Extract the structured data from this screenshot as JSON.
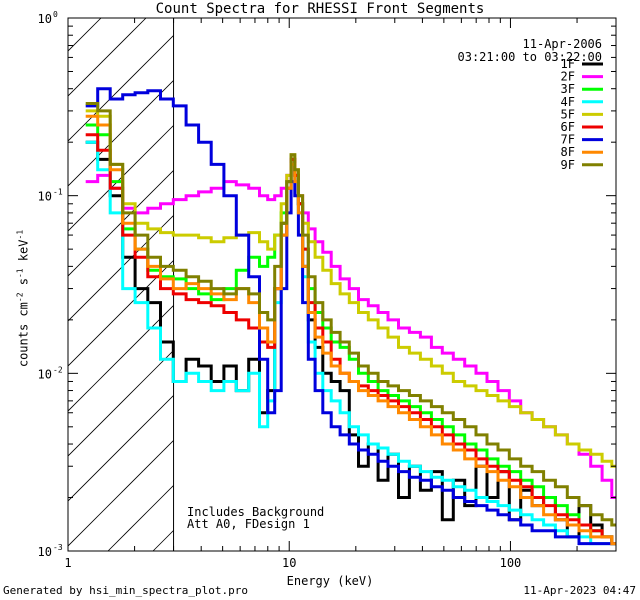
{
  "chart_data": {
    "type": "line",
    "title": "Count Spectra for RHESSI Front Segments",
    "xlabel": "Energy (keV)",
    "ylabel_parts": [
      "counts cm",
      "-2",
      " s",
      "-1",
      " keV",
      "-1"
    ],
    "xscale": "log",
    "yscale": "log",
    "xlim": [
      1,
      300
    ],
    "ylim": [
      0.001,
      1
    ],
    "x_ticks": [
      {
        "v": 1,
        "label": "1"
      },
      {
        "v": 10,
        "label": "10"
      },
      {
        "v": 100,
        "label": "100"
      }
    ],
    "y_ticks": [
      {
        "v": 0.001,
        "base": "10",
        "exp": "-3"
      },
      {
        "v": 0.01,
        "base": "10",
        "exp": "-2"
      },
      {
        "v": 0.1,
        "base": "10",
        "exp": "-1"
      },
      {
        "v": 1,
        "base": "10",
        "exp": "0"
      }
    ],
    "shaded_region": [
      1,
      3
    ],
    "date": "11-Apr-2006",
    "time_range": "03:21:00 to 03:22:00",
    "annotations": [
      "Includes Background",
      "Att A0, FDesign 1"
    ],
    "footer_left": "Generated by hsi_min_spectra_plot.pro",
    "footer_right": "11-Apr-2023 04:47",
    "x": [
      1.28,
      1.45,
      1.66,
      1.88,
      2.15,
      2.45,
      2.8,
      3.2,
      3.65,
      4.15,
      4.75,
      5.4,
      6.15,
      7.0,
      7.7,
      8.3,
      8.9,
      9.5,
      10.0,
      10.4,
      10.8,
      11.2,
      11.8,
      12.6,
      13.6,
      14.8,
      16.2,
      17.8,
      19.6,
      21.6,
      24.0,
      26.5,
      29.5,
      33.0,
      37.0,
      41.5,
      46.5,
      52.0,
      58.5,
      66.0,
      74.0,
      83.0,
      93.0,
      105.0,
      118.0,
      133.0,
      150.0,
      170.0,
      192.0,
      217.0,
      245.0,
      275.0,
      300.0
    ],
    "series": [
      {
        "name": "1F",
        "color": "#000000",
        "values": [
          0.2,
          0.16,
          0.1,
          0.045,
          0.03,
          0.025,
          0.015,
          0.009,
          0.012,
          0.011,
          0.009,
          0.011,
          0.008,
          0.012,
          0.006,
          0.008,
          0.03,
          0.07,
          0.12,
          0.16,
          0.13,
          0.09,
          0.04,
          0.02,
          0.014,
          0.01,
          0.009,
          0.008,
          0.0045,
          0.003,
          0.004,
          0.0025,
          0.0035,
          0.002,
          0.003,
          0.0022,
          0.0028,
          0.0015,
          0.0025,
          0.0018,
          0.003,
          0.002,
          0.0028,
          0.0015,
          0.0022,
          0.0018,
          0.002,
          0.0015,
          0.0012,
          0.0018,
          0.0014,
          0.0012,
          0.0011
        ]
      },
      {
        "name": "2F",
        "color": "#ff00ff",
        "values": [
          0.12,
          0.13,
          0.11,
          0.085,
          0.08,
          0.085,
          0.09,
          0.095,
          0.1,
          0.105,
          0.11,
          0.12,
          0.115,
          0.11,
          0.1,
          0.095,
          0.1,
          0.11,
          0.13,
          0.15,
          0.12,
          0.1,
          0.08,
          0.065,
          0.055,
          0.048,
          0.04,
          0.034,
          0.03,
          0.026,
          0.024,
          0.022,
          0.02,
          0.018,
          0.017,
          0.016,
          0.014,
          0.013,
          0.012,
          0.011,
          0.01,
          0.009,
          0.008,
          0.007,
          0.006,
          0.0055,
          0.005,
          0.0045,
          0.004,
          0.0035,
          0.003,
          0.0025,
          0.002
        ]
      },
      {
        "name": "3F",
        "color": "#00ff00",
        "values": [
          0.25,
          0.22,
          0.12,
          0.065,
          0.05,
          0.038,
          0.035,
          0.034,
          0.03,
          0.028,
          0.026,
          0.03,
          0.038,
          0.045,
          0.04,
          0.045,
          0.06,
          0.08,
          0.12,
          0.16,
          0.13,
          0.09,
          0.05,
          0.03,
          0.022,
          0.018,
          0.015,
          0.014,
          0.012,
          0.01,
          0.009,
          0.008,
          0.0075,
          0.007,
          0.0065,
          0.006,
          0.0055,
          0.005,
          0.0045,
          0.004,
          0.0037,
          0.0033,
          0.003,
          0.0028,
          0.0025,
          0.0023,
          0.002,
          0.0018,
          0.0016,
          0.0014,
          0.0013,
          0.0012,
          0.0011
        ]
      },
      {
        "name": "4F",
        "color": "#00ffff",
        "values": [
          0.2,
          0.14,
          0.08,
          0.03,
          0.025,
          0.018,
          0.012,
          0.009,
          0.01,
          0.009,
          0.008,
          0.009,
          0.008,
          0.01,
          0.005,
          0.007,
          0.025,
          0.06,
          0.11,
          0.15,
          0.12,
          0.08,
          0.035,
          0.015,
          0.01,
          0.008,
          0.007,
          0.006,
          0.005,
          0.0045,
          0.004,
          0.0038,
          0.0035,
          0.0032,
          0.003,
          0.0028,
          0.0026,
          0.0025,
          0.0023,
          0.0022,
          0.002,
          0.0019,
          0.0018,
          0.0017,
          0.0016,
          0.0015,
          0.0014,
          0.0013,
          0.0012,
          0.0012,
          0.0011,
          0.0011,
          0.0011
        ]
      },
      {
        "name": "5F",
        "color": "#cccc00",
        "values": [
          0.3,
          0.28,
          0.15,
          0.09,
          0.07,
          0.065,
          0.062,
          0.06,
          0.06,
          0.058,
          0.055,
          0.058,
          0.06,
          0.062,
          0.055,
          0.05,
          0.06,
          0.09,
          0.13,
          0.17,
          0.14,
          0.1,
          0.07,
          0.055,
          0.045,
          0.038,
          0.032,
          0.028,
          0.025,
          0.022,
          0.02,
          0.018,
          0.016,
          0.014,
          0.013,
          0.012,
          0.011,
          0.01,
          0.009,
          0.0085,
          0.008,
          0.0075,
          0.007,
          0.0065,
          0.006,
          0.0055,
          0.005,
          0.0045,
          0.004,
          0.0037,
          0.0035,
          0.0032,
          0.003
        ]
      },
      {
        "name": "6F",
        "color": "#ee0000",
        "values": [
          0.22,
          0.18,
          0.11,
          0.06,
          0.045,
          0.035,
          0.03,
          0.028,
          0.026,
          0.025,
          0.024,
          0.022,
          0.02,
          0.018,
          0.015,
          0.014,
          0.03,
          0.06,
          0.11,
          0.16,
          0.13,
          0.09,
          0.05,
          0.025,
          0.018,
          0.015,
          0.012,
          0.01,
          0.009,
          0.0085,
          0.008,
          0.0075,
          0.007,
          0.0065,
          0.006,
          0.0055,
          0.005,
          0.0045,
          0.004,
          0.0037,
          0.0033,
          0.003,
          0.0028,
          0.0025,
          0.0023,
          0.002,
          0.0018,
          0.0016,
          0.0015,
          0.0014,
          0.0013,
          0.0012,
          0.0011
        ]
      },
      {
        "name": "7F",
        "color": "#0000dd",
        "values": [
          0.32,
          0.4,
          0.35,
          0.37,
          0.38,
          0.39,
          0.35,
          0.32,
          0.25,
          0.2,
          0.15,
          0.1,
          0.06,
          0.035,
          0.012,
          0.006,
          0.008,
          0.03,
          0.08,
          0.12,
          0.1,
          0.06,
          0.025,
          0.012,
          0.008,
          0.006,
          0.005,
          0.0045,
          0.004,
          0.0037,
          0.0035,
          0.0032,
          0.003,
          0.0028,
          0.0026,
          0.0025,
          0.0023,
          0.0022,
          0.002,
          0.0019,
          0.0018,
          0.0017,
          0.0016,
          0.0015,
          0.0014,
          0.0013,
          0.0013,
          0.0012,
          0.0012,
          0.0011,
          0.0011,
          0.0011,
          0.0011
        ]
      },
      {
        "name": "8F",
        "color": "#ff8800",
        "values": [
          0.28,
          0.25,
          0.14,
          0.07,
          0.05,
          0.04,
          0.034,
          0.03,
          0.032,
          0.03,
          0.028,
          0.026,
          0.03,
          0.025,
          0.018,
          0.015,
          0.03,
          0.06,
          0.11,
          0.15,
          0.12,
          0.08,
          0.04,
          0.022,
          0.016,
          0.013,
          0.011,
          0.01,
          0.009,
          0.008,
          0.0075,
          0.007,
          0.0065,
          0.006,
          0.0055,
          0.005,
          0.0045,
          0.004,
          0.0037,
          0.0033,
          0.003,
          0.0028,
          0.0025,
          0.0023,
          0.002,
          0.0018,
          0.0016,
          0.0015,
          0.0014,
          0.0013,
          0.0012,
          0.0012,
          0.0011
        ]
      },
      {
        "name": "9F",
        "color": "#808000",
        "values": [
          0.33,
          0.3,
          0.15,
          0.08,
          0.06,
          0.045,
          0.04,
          0.038,
          0.035,
          0.033,
          0.03,
          0.028,
          0.03,
          0.028,
          0.022,
          0.02,
          0.04,
          0.07,
          0.12,
          0.17,
          0.14,
          0.1,
          0.06,
          0.035,
          0.025,
          0.02,
          0.017,
          0.015,
          0.013,
          0.011,
          0.01,
          0.009,
          0.0085,
          0.008,
          0.0075,
          0.007,
          0.0065,
          0.006,
          0.0055,
          0.005,
          0.0045,
          0.004,
          0.0037,
          0.0033,
          0.003,
          0.0028,
          0.0025,
          0.0023,
          0.002,
          0.0018,
          0.0016,
          0.0015,
          0.0014
        ]
      }
    ]
  }
}
